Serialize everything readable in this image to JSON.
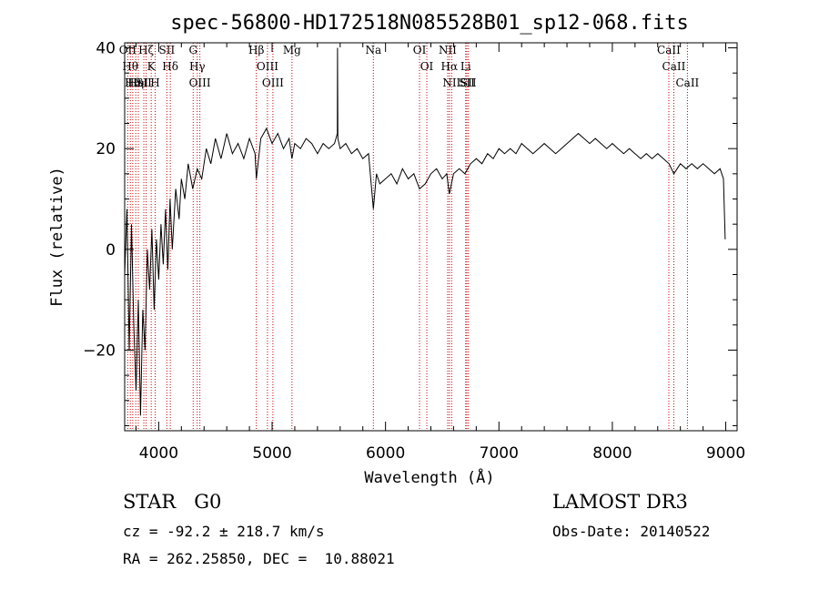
{
  "chart_data": {
    "type": "line",
    "title": "spec-56800-HD172518N085528B01_sp12-068.fits",
    "xlabel": "Wavelength (Å)",
    "ylabel": "Flux (relative)",
    "xlim": [
      3700,
      9100
    ],
    "ylim": [
      -36,
      41
    ],
    "xticks": [
      4000,
      5000,
      6000,
      7000,
      8000,
      9000
    ],
    "yticks": [
      -20,
      0,
      20,
      40
    ],
    "series": [
      {
        "name": "flux",
        "x": [
          3700,
          3720,
          3740,
          3760,
          3780,
          3800,
          3820,
          3840,
          3860,
          3880,
          3900,
          3920,
          3940,
          3960,
          3980,
          4000,
          4020,
          4040,
          4060,
          4080,
          4100,
          4120,
          4150,
          4180,
          4200,
          4230,
          4260,
          4300,
          4340,
          4380,
          4420,
          4460,
          4500,
          4550,
          4600,
          4650,
          4700,
          4750,
          4800,
          4850,
          4861,
          4900,
          4950,
          5000,
          5050,
          5100,
          5150,
          5175,
          5200,
          5250,
          5300,
          5350,
          5400,
          5450,
          5500,
          5550,
          5575,
          5577,
          5580,
          5600,
          5650,
          5700,
          5750,
          5800,
          5850,
          5893,
          5920,
          5950,
          6000,
          6050,
          6100,
          6150,
          6200,
          6250,
          6300,
          6350,
          6400,
          6450,
          6500,
          6540,
          6563,
          6600,
          6650,
          6700,
          6750,
          6800,
          6850,
          6900,
          6950,
          7000,
          7050,
          7100,
          7150,
          7200,
          7250,
          7300,
          7350,
          7400,
          7450,
          7500,
          7550,
          7600,
          7650,
          7700,
          7750,
          7800,
          7850,
          7900,
          7950,
          8000,
          8050,
          8100,
          8150,
          8200,
          8250,
          8300,
          8350,
          8400,
          8450,
          8500,
          8542,
          8600,
          8650,
          8700,
          8750,
          8800,
          8850,
          8900,
          8950,
          8980,
          8995
        ],
        "values": [
          -5,
          8,
          -20,
          5,
          -15,
          -28,
          -10,
          -33,
          -12,
          -20,
          0,
          -8,
          4,
          -12,
          2,
          -6,
          5,
          -3,
          8,
          -4,
          10,
          0,
          12,
          6,
          14,
          10,
          17,
          12,
          16,
          14,
          20,
          17,
          22,
          18,
          23,
          19,
          21,
          18,
          22,
          19,
          14,
          22,
          24,
          21,
          23,
          20,
          22,
          18,
          21,
          20,
          22,
          21,
          19,
          21,
          20,
          21,
          23,
          40,
          22,
          20,
          21,
          19,
          20,
          18,
          19,
          8,
          15,
          13,
          14,
          15,
          13,
          16,
          14,
          15,
          12,
          13,
          15,
          16,
          14,
          15,
          11,
          15,
          16,
          15,
          17,
          18,
          17,
          19,
          18,
          20,
          19,
          20,
          19,
          21,
          20,
          19,
          20,
          21,
          20,
          19,
          20,
          21,
          22,
          23,
          22,
          21,
          22,
          21,
          20,
          21,
          20,
          19,
          20,
          19,
          18,
          19,
          18,
          19,
          18,
          17,
          15,
          17,
          16,
          17,
          16,
          17,
          16,
          15,
          16,
          14,
          2
        ]
      }
    ],
    "line_markers": [
      {
        "wl": 3727,
        "label": "OII"
      },
      {
        "wl": 3750,
        "label": "Hθ"
      },
      {
        "wl": 3771,
        "label": "Hθ"
      },
      {
        "wl": 3798,
        "label": "Hη"
      },
      {
        "wl": 3820,
        "label": "HeI"
      },
      {
        "wl": 3869,
        "label": "SII"
      },
      {
        "wl": 3889,
        "label": "Hζ"
      },
      {
        "wl": 3934,
        "label": "K"
      },
      {
        "wl": 3969,
        "label": "H"
      },
      {
        "wl": 4072,
        "label": "SII"
      },
      {
        "wl": 4102,
        "label": "Hδ"
      },
      {
        "wl": 4304,
        "label": "G"
      },
      {
        "wl": 4340,
        "label": "Hγ"
      },
      {
        "wl": 4363,
        "label": "OIII"
      },
      {
        "wl": 4861,
        "label": "Hβ"
      },
      {
        "wl": 4959,
        "label": "OIII"
      },
      {
        "wl": 5007,
        "label": "OIII"
      },
      {
        "wl": 5175,
        "label": "Mg"
      },
      {
        "wl": 5893,
        "label": "Na"
      },
      {
        "wl": 6300,
        "label": "OI"
      },
      {
        "wl": 6364,
        "label": "OI"
      },
      {
        "wl": 6548,
        "label": "NII"
      },
      {
        "wl": 6563,
        "label": "Hα"
      },
      {
        "wl": 6583,
        "label": "NII"
      },
      {
        "wl": 6707,
        "label": "Li"
      },
      {
        "wl": 6717,
        "label": "SII"
      },
      {
        "wl": 6731,
        "label": "SII"
      },
      {
        "wl": 8498,
        "label": "CaII"
      },
      {
        "wl": 8542,
        "label": "CaII"
      },
      {
        "wl": 8662,
        "label": "CaII"
      }
    ]
  },
  "info": {
    "star_class": "STAR   G0",
    "survey": "LAMOST DR3",
    "cz": "cz = -92.2 ± 218.7 km/s",
    "obs_date": "Obs-Date: 20140522",
    "coords": "RA = 262.25850, DEC =  10.88021"
  },
  "colors": {
    "line_marker": "#cc0000",
    "spectrum": "#000000"
  }
}
